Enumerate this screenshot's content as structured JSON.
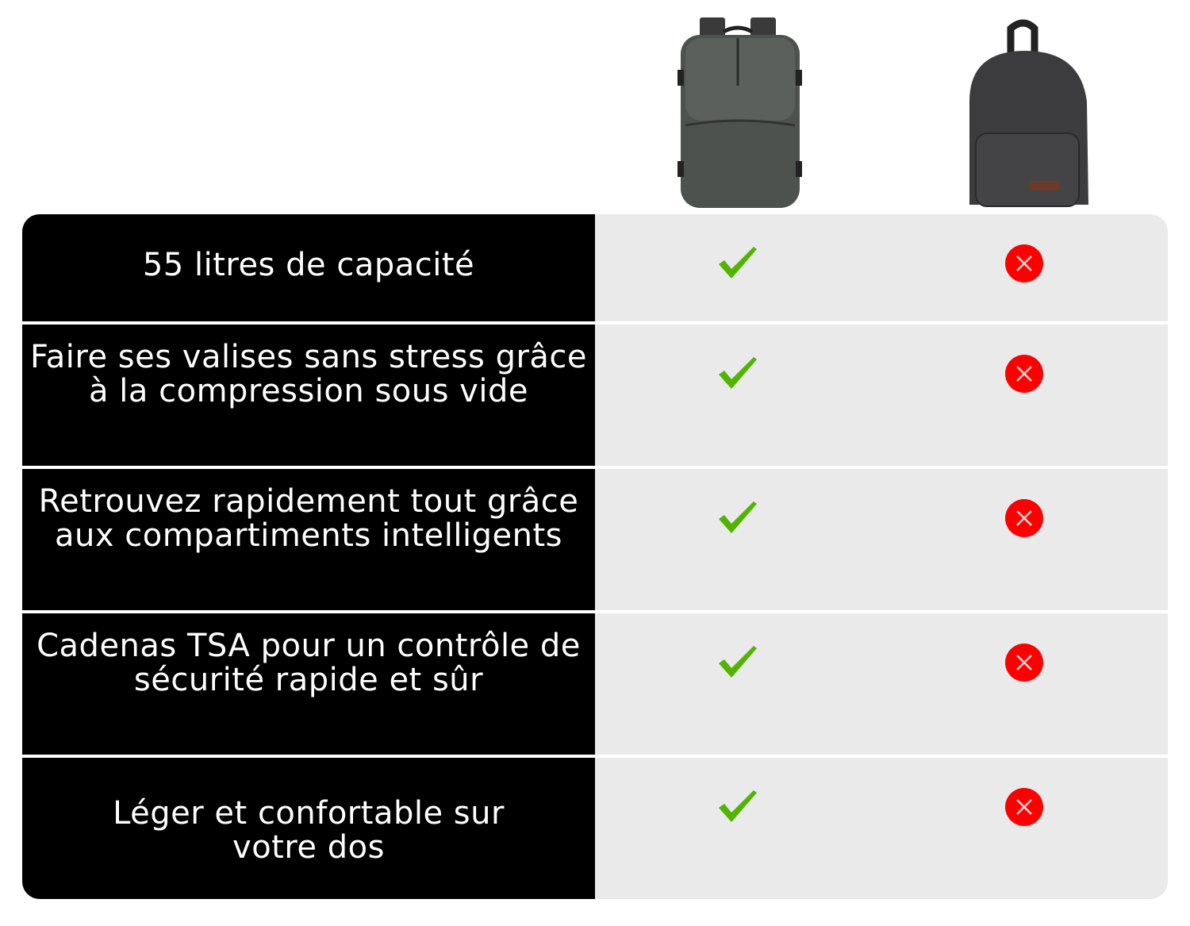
{
  "products": [
    {
      "name": "vacuum-travel-backpack",
      "icon": "backpack-image"
    },
    {
      "name": "classic-backpack",
      "icon": "backpack-image"
    }
  ],
  "colors": {
    "feature_bg": "#000000",
    "cell_bg": "#eaeaea",
    "check": "#52b400",
    "cross": "#ff0000"
  },
  "rows": [
    {
      "feature": "55 litres de capacité",
      "product1": "check-icon",
      "product2": "cross-icon"
    },
    {
      "feature": "Faire ses valises sans stress grâce à la compression sous vide",
      "product1": "check-icon",
      "product2": "cross-icon"
    },
    {
      "feature": "Retrouvez rapidement tout grâce aux compartiments intelligents",
      "product1": "check-icon",
      "product2": "cross-icon"
    },
    {
      "feature": "Cadenas TSA pour un contrôle de sécurité rapide et sûr",
      "product1": "check-icon",
      "product2": "cross-icon"
    },
    {
      "feature": "Léger et confortable sur votre dos",
      "product1": "check-icon",
      "product2": "cross-icon"
    }
  ]
}
